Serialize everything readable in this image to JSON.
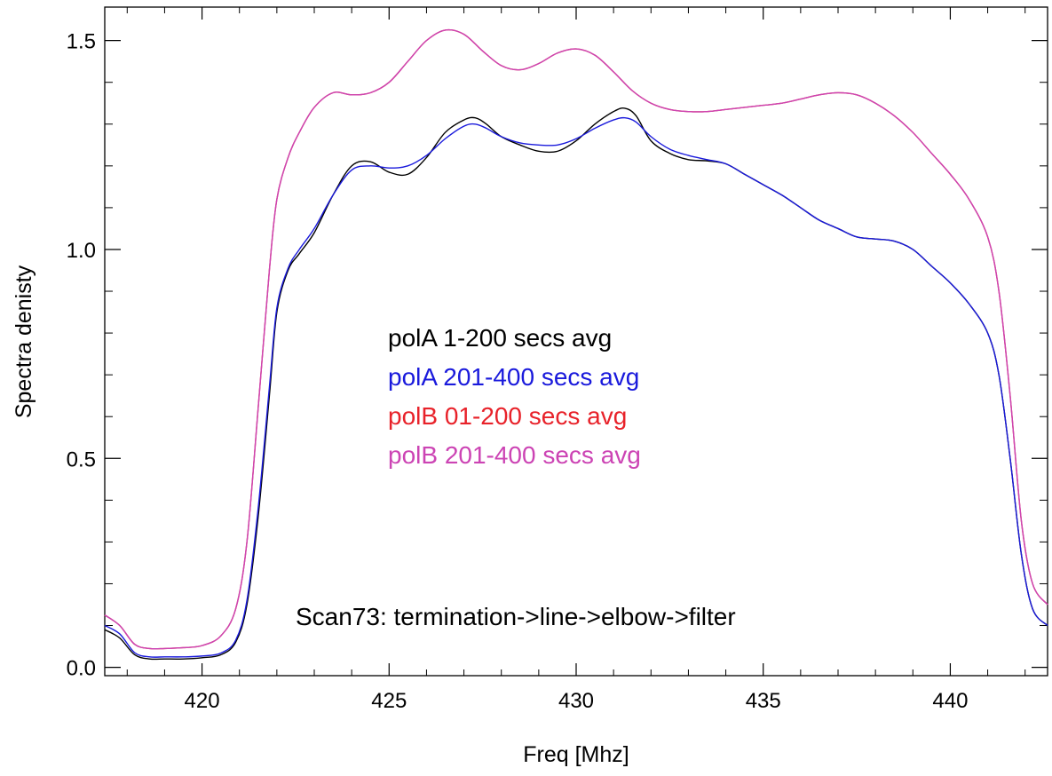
{
  "chart_data": {
    "type": "line",
    "xlabel": "Freq [Mhz]",
    "ylabel": "Spectra denisty",
    "xlim": [
      417.4,
      442.6
    ],
    "ylim": [
      -0.02,
      1.58
    ],
    "x_ticks": [
      420,
      425,
      430,
      435,
      440
    ],
    "y_ticks": [
      0.0,
      0.5,
      1.0,
      1.5
    ],
    "x_tick_labels": [
      "420",
      "425",
      "430",
      "435",
      "440"
    ],
    "y_tick_labels": [
      "0.0",
      "0.5",
      "1.0",
      "1.5"
    ],
    "grid": false,
    "legend": [
      {
        "text": "polA 1-200 secs avg",
        "color": "#000000"
      },
      {
        "text": "polA 201-400 secs avg",
        "color": "#1a1adc"
      },
      {
        "text": "polB  01-200 secs avg",
        "color": "#e8222a"
      },
      {
        "text": "polB 201-400 secs avg",
        "color": "#cc44b4"
      }
    ],
    "annotation": "Scan73: termination->line->elbow->filter",
    "series": [
      {
        "color": "#000000",
        "x": [
          417.4,
          417.8,
          418.2,
          418.6,
          419.0,
          419.5,
          420.0,
          420.5,
          420.9,
          421.2,
          421.5,
          421.8,
          422.0,
          422.3,
          422.6,
          423.0,
          423.5,
          424.0,
          424.5,
          425.0,
          425.5,
          426.0,
          426.5,
          427.0,
          427.3,
          427.6,
          428.0,
          428.5,
          429.0,
          429.5,
          430.0,
          430.5,
          431.0,
          431.3,
          431.6,
          432.0,
          432.5,
          433.0,
          433.5,
          434.0,
          434.5,
          435.0,
          435.5,
          436.0,
          436.5,
          437.0,
          437.5,
          438.0,
          438.5,
          439.0,
          439.5,
          440.0,
          440.5,
          441.0,
          441.3,
          441.6,
          441.9,
          442.2,
          442.6
        ],
        "y": [
          0.09,
          0.07,
          0.03,
          0.02,
          0.02,
          0.02,
          0.023,
          0.03,
          0.06,
          0.15,
          0.36,
          0.65,
          0.85,
          0.95,
          0.99,
          1.04,
          1.13,
          1.2,
          1.21,
          1.185,
          1.18,
          1.22,
          1.28,
          1.31,
          1.315,
          1.3,
          1.27,
          1.25,
          1.235,
          1.235,
          1.26,
          1.3,
          1.33,
          1.338,
          1.32,
          1.26,
          1.23,
          1.215,
          1.212,
          1.205,
          1.18,
          1.155,
          1.13,
          1.1,
          1.07,
          1.05,
          1.03,
          1.025,
          1.02,
          1.0,
          0.96,
          0.92,
          0.87,
          0.8,
          0.7,
          0.5,
          0.27,
          0.14,
          0.1
        ]
      },
      {
        "color": "#1a1adc",
        "x": [
          417.4,
          417.8,
          418.2,
          418.6,
          419.0,
          419.5,
          420.0,
          420.5,
          420.9,
          421.2,
          421.5,
          421.8,
          422.0,
          422.3,
          422.6,
          423.0,
          423.5,
          424.0,
          424.5,
          425.0,
          425.5,
          426.0,
          426.5,
          427.0,
          427.3,
          427.6,
          428.0,
          428.5,
          429.0,
          429.5,
          430.0,
          430.5,
          431.0,
          431.3,
          431.6,
          432.0,
          432.5,
          433.0,
          433.5,
          434.0,
          434.5,
          435.0,
          435.5,
          436.0,
          436.5,
          437.0,
          437.5,
          438.0,
          438.5,
          439.0,
          439.5,
          440.0,
          440.5,
          441.0,
          441.3,
          441.6,
          441.9,
          442.2,
          442.6
        ],
        "y": [
          0.1,
          0.08,
          0.035,
          0.025,
          0.025,
          0.025,
          0.027,
          0.034,
          0.065,
          0.16,
          0.38,
          0.67,
          0.86,
          0.955,
          1.0,
          1.05,
          1.13,
          1.19,
          1.2,
          1.195,
          1.2,
          1.225,
          1.265,
          1.295,
          1.3,
          1.29,
          1.27,
          1.255,
          1.25,
          1.25,
          1.265,
          1.29,
          1.31,
          1.315,
          1.305,
          1.27,
          1.24,
          1.225,
          1.215,
          1.205,
          1.18,
          1.155,
          1.13,
          1.1,
          1.07,
          1.05,
          1.03,
          1.025,
          1.02,
          1.0,
          0.96,
          0.92,
          0.87,
          0.8,
          0.7,
          0.5,
          0.27,
          0.14,
          0.1
        ]
      },
      {
        "color": "#e8222a",
        "x": [
          417.4,
          417.8,
          418.2,
          418.6,
          419.0,
          419.5,
          420.0,
          420.5,
          420.9,
          421.2,
          421.5,
          421.8,
          422.0,
          422.3,
          422.6,
          423.0,
          423.5,
          424.0,
          424.5,
          425.0,
          425.5,
          426.0,
          426.5,
          427.0,
          427.5,
          428.0,
          428.5,
          429.0,
          429.5,
          430.0,
          430.5,
          431.0,
          431.5,
          432.0,
          432.5,
          433.0,
          433.5,
          434.0,
          434.5,
          435.0,
          435.5,
          436.0,
          436.5,
          437.0,
          437.5,
          438.0,
          438.5,
          439.0,
          439.5,
          440.0,
          440.5,
          441.0,
          441.3,
          441.6,
          441.9,
          442.2,
          442.6
        ],
        "y": [
          0.125,
          0.1,
          0.055,
          0.045,
          0.045,
          0.047,
          0.052,
          0.075,
          0.14,
          0.3,
          0.62,
          0.95,
          1.12,
          1.22,
          1.28,
          1.34,
          1.375,
          1.37,
          1.375,
          1.4,
          1.45,
          1.5,
          1.525,
          1.515,
          1.475,
          1.44,
          1.43,
          1.445,
          1.47,
          1.48,
          1.465,
          1.425,
          1.38,
          1.35,
          1.335,
          1.33,
          1.33,
          1.335,
          1.34,
          1.345,
          1.35,
          1.36,
          1.37,
          1.375,
          1.37,
          1.35,
          1.32,
          1.28,
          1.23,
          1.18,
          1.12,
          1.03,
          0.9,
          0.65,
          0.35,
          0.2,
          0.15
        ]
      },
      {
        "color": "#cc44b4",
        "x": [
          417.4,
          417.8,
          418.2,
          418.6,
          419.0,
          419.5,
          420.0,
          420.5,
          420.9,
          421.2,
          421.5,
          421.8,
          422.0,
          422.3,
          422.6,
          423.0,
          423.5,
          424.0,
          424.5,
          425.0,
          425.5,
          426.0,
          426.5,
          427.0,
          427.5,
          428.0,
          428.5,
          429.0,
          429.5,
          430.0,
          430.5,
          431.0,
          431.5,
          432.0,
          432.5,
          433.0,
          433.5,
          434.0,
          434.5,
          435.0,
          435.5,
          436.0,
          436.5,
          437.0,
          437.5,
          438.0,
          438.5,
          439.0,
          439.5,
          440.0,
          440.5,
          441.0,
          441.3,
          441.6,
          441.9,
          442.2,
          442.6
        ],
        "y": [
          0.125,
          0.1,
          0.055,
          0.045,
          0.045,
          0.047,
          0.052,
          0.075,
          0.14,
          0.3,
          0.62,
          0.95,
          1.12,
          1.22,
          1.28,
          1.34,
          1.375,
          1.37,
          1.375,
          1.4,
          1.45,
          1.5,
          1.525,
          1.515,
          1.475,
          1.44,
          1.43,
          1.445,
          1.47,
          1.48,
          1.465,
          1.425,
          1.38,
          1.35,
          1.335,
          1.33,
          1.33,
          1.335,
          1.34,
          1.345,
          1.35,
          1.36,
          1.37,
          1.375,
          1.37,
          1.35,
          1.32,
          1.28,
          1.23,
          1.18,
          1.12,
          1.03,
          0.9,
          0.65,
          0.35,
          0.2,
          0.15
        ]
      }
    ]
  }
}
